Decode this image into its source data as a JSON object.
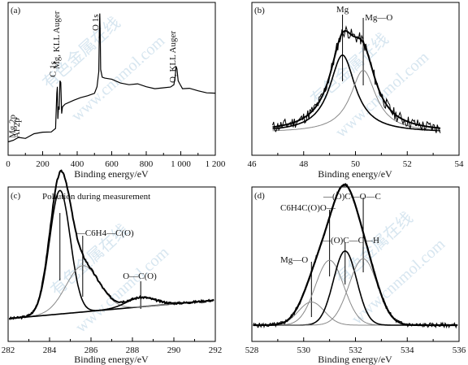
{
  "watermark": [
    "有色金属在线",
    "www.cnnmol.com"
  ],
  "chart_data": [
    {
      "panel": "(a)",
      "type": "line",
      "xlabel": "Binding energy/eV",
      "xlim": [
        0,
        1200
      ],
      "xticks": [
        0,
        200,
        400,
        600,
        800,
        1000,
        1200
      ],
      "xtick_labels": [
        "0",
        "200",
        "400",
        "600",
        "800",
        "1 000",
        "1 200"
      ],
      "annotations": [
        {
          "id": "mg2p",
          "text": "Mg 2p",
          "x": 50
        },
        {
          "id": "al2p",
          "text": "Al 2p",
          "x": 75
        },
        {
          "id": "c1s",
          "text": "C 1s",
          "x": 285
        },
        {
          "id": "mgkll",
          "text": "Mg, KLL Auger",
          "x": 305
        },
        {
          "id": "o1s",
          "text": "O 1s",
          "x": 531
        },
        {
          "id": "okll",
          "text": "O, KLL Auger",
          "x": 978
        }
      ],
      "series": [
        {
          "color": "#000000",
          "x": [
            0,
            30,
            60,
            100,
            150,
            200,
            250,
            275,
            282,
            285,
            288,
            292,
            296,
            300,
            305,
            310,
            315,
            330,
            380,
            420,
            460,
            500,
            515,
            525,
            529,
            531,
            533,
            536,
            545,
            560,
            600,
            650,
            700,
            750,
            800,
            850,
            900,
            940,
            960,
            968,
            972,
            978,
            985,
            995,
            1010,
            1050,
            1100,
            1150,
            1200
          ],
          "y": [
            0.05,
            0.06,
            0.09,
            0.08,
            0.11,
            0.12,
            0.13,
            0.14,
            0.4,
            0.45,
            0.22,
            0.3,
            0.28,
            0.5,
            0.48,
            0.26,
            0.3,
            0.33,
            0.35,
            0.37,
            0.39,
            0.41,
            0.44,
            0.55,
            0.9,
            0.98,
            0.85,
            0.58,
            0.52,
            0.51,
            0.5,
            0.48,
            0.47,
            0.46,
            0.45,
            0.44,
            0.44,
            0.45,
            0.47,
            0.52,
            0.6,
            0.58,
            0.5,
            0.46,
            0.44,
            0.43,
            0.42,
            0.41,
            0.4
          ]
        }
      ]
    },
    {
      "panel": "(b)",
      "type": "line",
      "xlabel": "Binding energy/eV",
      "xlim": [
        46,
        54
      ],
      "xticks": [
        46,
        48,
        50,
        52,
        54
      ],
      "xtick_labels": [
        "46",
        "48",
        "50",
        "52",
        "54"
      ],
      "annotations": [
        {
          "id": "mg",
          "text": "Mg",
          "x": 49.5
        },
        {
          "id": "mgo",
          "text": "Mg—O",
          "x": 50.3
        }
      ],
      "series": [
        {
          "color": "#000000",
          "line": "noisy-raw",
          "x_center": 49.7,
          "y_peak": 0.78
        },
        {
          "color": "#000000",
          "line": "component-Mg",
          "center": 49.5,
          "amplitude": 0.56,
          "width": 0.6
        },
        {
          "color": "#888888",
          "line": "component-MgO",
          "center": 50.3,
          "amplitude": 0.45,
          "width": 0.6
        },
        {
          "color": "#000000",
          "line": "envelope"
        }
      ]
    },
    {
      "panel": "(c)",
      "type": "line",
      "title": "Pollution during measurement",
      "xlabel": "Binding energy/eV",
      "xlim": [
        282,
        292
      ],
      "xticks": [
        282,
        284,
        286,
        288,
        290,
        292
      ],
      "xtick_labels": [
        "282",
        "284",
        "286",
        "288",
        "290",
        "292"
      ],
      "annotations": [
        {
          "id": "c6h4",
          "text": "—C6H4—C(O)",
          "x": 285.6
        },
        {
          "id": "oco",
          "text": "O—C(O)",
          "x": 288.4
        }
      ],
      "series": [
        {
          "color": "#000000",
          "line": "component-CH",
          "center": 284.5,
          "amplitude": 0.8,
          "width": 0.5
        },
        {
          "color": "#888888",
          "line": "component-C6H4CO",
          "center": 285.6,
          "amplitude": 0.3,
          "width": 0.8
        },
        {
          "color": "#000000",
          "line": "component-OCO",
          "center": 288.4,
          "amplitude": 0.06,
          "width": 0.7
        },
        {
          "color": "#000000",
          "line": "envelope"
        }
      ]
    },
    {
      "panel": "(d)",
      "type": "line",
      "xlabel": "Binding energy/eV",
      "xlim": [
        528,
        536
      ],
      "xticks": [
        528,
        530,
        532,
        534,
        536
      ],
      "xtick_labels": [
        "528",
        "530",
        "532",
        "534",
        "536"
      ],
      "annotations": [
        {
          "id": "mgo",
          "text": "Mg—O",
          "x": 530.3
        },
        {
          "id": "c6h4co",
          "text": "C6H4C(O)O—",
          "x": 531.0
        },
        {
          "id": "ocoh",
          "text": "—(O)C—C—H",
          "x": 531.6
        },
        {
          "id": "ococ",
          "text": "—(O)C—O—C",
          "x": 532.3
        }
      ],
      "series": [
        {
          "color": "#888888",
          "line": "component-MgO",
          "center": 530.3,
          "amplitude": 0.15,
          "width": 0.5
        },
        {
          "color": "#888888",
          "line": "component-C6H4COO",
          "center": 531.0,
          "amplitude": 0.42,
          "width": 0.55
        },
        {
          "color": "#000000",
          "line": "component-OCCH",
          "center": 531.6,
          "amplitude": 0.48,
          "width": 0.45
        },
        {
          "color": "#888888",
          "line": "component-OCOC",
          "center": 532.3,
          "amplitude": 0.43,
          "width": 0.55
        },
        {
          "color": "#000000",
          "line": "envelope"
        }
      ]
    }
  ]
}
